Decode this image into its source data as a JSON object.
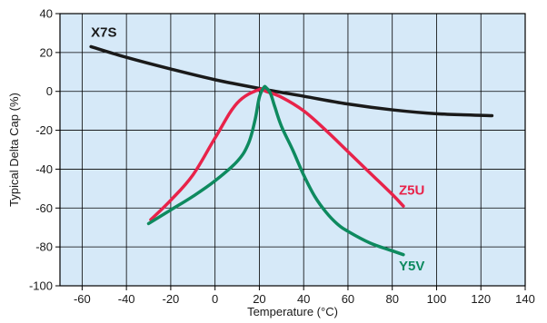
{
  "chart_data": {
    "type": "line",
    "title": "",
    "xlabel": "Temperature (°C)",
    "ylabel": "Typical Delta Cap (%)",
    "xlim": [
      -70,
      140
    ],
    "ylim": [
      -100,
      40
    ],
    "grid": true,
    "background_color": "#d6e9f8",
    "grid_color": "#000000",
    "x_ticks": [
      "-60",
      "-40",
      "-20",
      "0",
      "20",
      "40",
      "60",
      "80",
      "100",
      "120",
      "140"
    ],
    "y_ticks": [
      "-100",
      "-80",
      "-60",
      "-40",
      "-20",
      "0",
      "20",
      "40"
    ],
    "series": [
      {
        "name": "X7S",
        "color": "#1a1a1a",
        "label_at": [
          -56,
          28
        ],
        "x": [
          -56,
          -40,
          -20,
          0,
          20,
          40,
          60,
          80,
          100,
          125
        ],
        "y": [
          23,
          17.5,
          11.5,
          6,
          1.5,
          -2.5,
          -6.5,
          -9.5,
          -11.5,
          -12.5
        ]
      },
      {
        "name": "Z5U",
        "color": "#e8234a",
        "label_at": [
          83,
          -53
        ],
        "x": [
          -29,
          -20,
          -10,
          0,
          10,
          20,
          23,
          30,
          40,
          50,
          60,
          70,
          80,
          85
        ],
        "y": [
          -66,
          -56,
          -43,
          -24,
          -6,
          1,
          0,
          -3,
          -10,
          -20,
          -31,
          -42,
          -53,
          -59
        ]
      },
      {
        "name": "Y5V",
        "color": "#0e8a5f",
        "label_at": [
          83,
          -92
        ],
        "x": [
          -30,
          -20,
          -10,
          0,
          10,
          15,
          18,
          20,
          22,
          23,
          25,
          27,
          30,
          35,
          40,
          45,
          50,
          55,
          60,
          70,
          80,
          85
        ],
        "y": [
          -68,
          -61,
          -54,
          -46,
          -36,
          -27,
          -15,
          -3,
          2,
          2,
          -1,
          -8,
          -18,
          -30,
          -43,
          -54,
          -62,
          -68,
          -72,
          -78,
          -82,
          -84
        ]
      }
    ]
  }
}
